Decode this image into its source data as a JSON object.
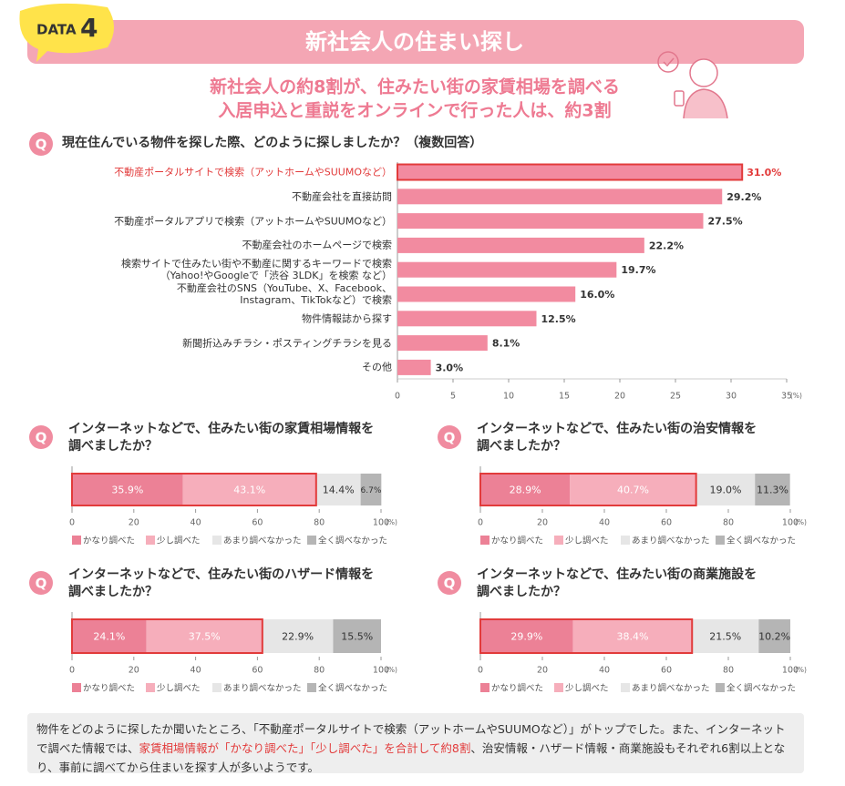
{
  "header": {
    "badge_label": "DATA",
    "badge_number": "4",
    "title": "新社会人の住まい探し",
    "subtitle_lines": [
      "新社会人の約8割が、住みたい街の家賃相場を調べる",
      "入居申込と重説をオンラインで行った人は、約3割"
    ]
  },
  "chart_data": [
    {
      "type": "bar",
      "question_mark": "Q",
      "title": "現在住んでいる物件を探した際、どのように探しましたか？（複数回答）",
      "categories": [
        "不動産ポータルサイトで検索（アットホームやSUUMOなど）",
        "不動産会社を直接訪問",
        "不動産ポータルアプリで検索（アットホームやSUUMOなど）",
        "不動産会社のホームページで検索",
        "検索サイトで住みたい街や不動産に関するキーワードで検索\n（Yahoo!やGoogleで「渋谷 3LDK」を検索 など）",
        "不動産会社のSNS（YouTube、X、Facebook、\nInstagram、TikTokなど）で検索",
        "物件情報誌から探す",
        "新聞折込みチラシ・ポスティングチラシを見る",
        "その他"
      ],
      "values": [
        31.0,
        29.2,
        27.5,
        22.2,
        19.7,
        16.0,
        12.5,
        8.1,
        3.0
      ],
      "value_labels": [
        "31.0%",
        "29.2%",
        "27.5%",
        "22.2%",
        "19.7%",
        "16.0%",
        "12.5%",
        "8.1%",
        "3.0%"
      ],
      "color": "#f28ba0",
      "highlight_index": 0,
      "highlight_color": "#e23b3b",
      "xlim": [
        0,
        35
      ],
      "xticks": [
        0,
        5,
        10,
        15,
        20,
        25,
        30,
        35
      ],
      "unit": "(%)"
    },
    {
      "type": "stacked_bar",
      "question_mark": "Q",
      "title": "インターネットなどで、住みたい街の家賃相場情報を\n調べましたか？",
      "series": [
        {
          "name": "かなり調べた",
          "color": "#ec8196",
          "values": [
            35.9
          ],
          "value_labels": [
            "35.9%"
          ]
        },
        {
          "name": "少し調べた",
          "color": "#f6aebb",
          "values": [
            43.1
          ],
          "value_labels": [
            "43.1%"
          ]
        },
        {
          "name": "あまり調べなかった",
          "color": "#e6e6e6",
          "values": [
            14.4
          ],
          "value_labels": [
            "14.4%"
          ]
        },
        {
          "name": "全く調べなかった",
          "color": "#b5b5b5",
          "values": [
            6.7
          ],
          "value_labels": [
            "6.7%"
          ]
        }
      ],
      "highlight_series": [
        0,
        1
      ],
      "highlight_color": "#e23b3b",
      "xlim": [
        0,
        100
      ],
      "xticks": [
        0,
        20,
        40,
        60,
        80,
        100
      ],
      "unit": "(%)"
    },
    {
      "type": "stacked_bar",
      "question_mark": "Q",
      "title": "インターネットなどで、住みたい街の治安情報を\n調べましたか？",
      "series": [
        {
          "name": "かなり調べた",
          "color": "#ec8196",
          "values": [
            28.9
          ],
          "value_labels": [
            "28.9%"
          ]
        },
        {
          "name": "少し調べた",
          "color": "#f6aebb",
          "values": [
            40.7
          ],
          "value_labels": [
            "40.7%"
          ]
        },
        {
          "name": "あまり調べなかった",
          "color": "#e6e6e6",
          "values": [
            19.0
          ],
          "value_labels": [
            "19.0%"
          ]
        },
        {
          "name": "全く調べなかった",
          "color": "#b5b5b5",
          "values": [
            11.3
          ],
          "value_labels": [
            "11.3%"
          ]
        }
      ],
      "highlight_series": [
        0,
        1
      ],
      "highlight_color": "#e23b3b",
      "xlim": [
        0,
        100
      ],
      "xticks": [
        0,
        20,
        40,
        60,
        80,
        100
      ],
      "unit": "(%)"
    },
    {
      "type": "stacked_bar",
      "question_mark": "Q",
      "title": "インターネットなどで、住みたい街のハザード情報を\n調べましたか？",
      "series": [
        {
          "name": "かなり調べた",
          "color": "#ec8196",
          "values": [
            24.1
          ],
          "value_labels": [
            "24.1%"
          ]
        },
        {
          "name": "少し調べた",
          "color": "#f6aebb",
          "values": [
            37.5
          ],
          "value_labels": [
            "37.5%"
          ]
        },
        {
          "name": "あまり調べなかった",
          "color": "#e6e6e6",
          "values": [
            22.9
          ],
          "value_labels": [
            "22.9%"
          ]
        },
        {
          "name": "全く調べなかった",
          "color": "#b5b5b5",
          "values": [
            15.5
          ],
          "value_labels": [
            "15.5%"
          ]
        }
      ],
      "highlight_series": [
        0,
        1
      ],
      "highlight_color": "#e23b3b",
      "xlim": [
        0,
        100
      ],
      "xticks": [
        0,
        20,
        40,
        60,
        80,
        100
      ],
      "unit": "(%)"
    },
    {
      "type": "stacked_bar",
      "question_mark": "Q",
      "title": "インターネットなどで、住みたい街の商業施設を\n調べましたか？",
      "series": [
        {
          "name": "かなり調べた",
          "color": "#ec8196",
          "values": [
            29.9
          ],
          "value_labels": [
            "29.9%"
          ]
        },
        {
          "name": "少し調べた",
          "color": "#f6aebb",
          "values": [
            38.4
          ],
          "value_labels": [
            "38.4%"
          ]
        },
        {
          "name": "あまり調べなかった",
          "color": "#e6e6e6",
          "values": [
            21.5
          ],
          "value_labels": [
            "21.5%"
          ]
        },
        {
          "name": "全く調べなかった",
          "color": "#b5b5b5",
          "values": [
            10.2
          ],
          "value_labels": [
            "10.2%"
          ]
        }
      ],
      "highlight_series": [
        0,
        1
      ],
      "highlight_color": "#e23b3b",
      "xlim": [
        0,
        100
      ],
      "xticks": [
        0,
        20,
        40,
        60,
        80,
        100
      ],
      "unit": "(%)"
    }
  ],
  "footnote": {
    "parts": [
      "物件をどのように探したか聞いたところ、「不動産ポータルサイトで検索（アットホームやSUUMOなど）」がトップでした。また、インターネットで調べた情報では、",
      "家賃相場情報が「かなり調べた」「少し調べた」を合計して約8割",
      "、治安情報・ハザード情報・商業施設もそれぞれ6割以上となり、事前に調べてから住まいを探す人が多いようです。"
    ],
    "emphasis_index": 1,
    "emphasis_color": "#e23b3b"
  }
}
